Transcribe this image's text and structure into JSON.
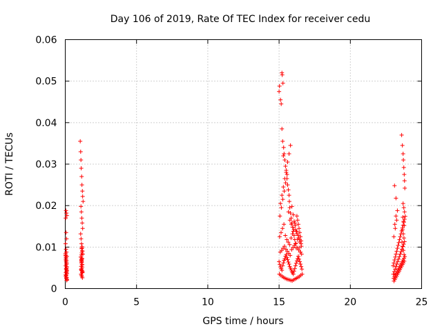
{
  "chart_data": {
    "type": "scatter",
    "title": "Day 106 of 2019, Rate Of TEC Index for receiver cedu",
    "xlabel": "GPS time / hours",
    "ylabel": "ROTI / TECUs",
    "xlim": [
      0,
      25
    ],
    "ylim": [
      0,
      0.06
    ],
    "x_ticks": [
      0,
      5,
      10,
      15,
      20,
      25
    ],
    "y_ticks": [
      0,
      0.01,
      0.02,
      0.03,
      0.04,
      0.05,
      0.06
    ],
    "x_tick_labels": [
      "0",
      "5",
      "10",
      "15",
      "20",
      "25"
    ],
    "y_tick_labels": [
      "0",
      "0.01",
      "0.02",
      "0.03",
      "0.04",
      "0.05",
      "0.06"
    ],
    "grid": true,
    "legend": "none",
    "marker": "plus",
    "color": "#ff0000",
    "series": [
      {
        "x": [
          0.02,
          0.03,
          0.05,
          0.06,
          0.08,
          0.1,
          0.12,
          0.04,
          0.07,
          0.09,
          0.11,
          0.02,
          0.05,
          0.08,
          0.1,
          0.03,
          0.06,
          0.09,
          0.12,
          0.04,
          0.07,
          0.1,
          0.05,
          0.08,
          0.11,
          0.03,
          0.06,
          0.09,
          0.02,
          0.05,
          0.08,
          0.11,
          0.04,
          0.07,
          0.1,
          0.06,
          0.09,
          0.03,
          0.08,
          0.12,
          1.05,
          1.08,
          1.1,
          1.12,
          1.15,
          1.17,
          1.2,
          1.22,
          1.25,
          1.1,
          1.13,
          1.16,
          1.19,
          1.22,
          1.08,
          1.11,
          1.14,
          1.17,
          1.2,
          1.23,
          1.1,
          1.13,
          1.16,
          1.19,
          1.12,
          1.15,
          1.18,
          1.21,
          1.11,
          1.14,
          1.17,
          1.2,
          1.13,
          1.16,
          1.19,
          1.12,
          1.15,
          1.18,
          1.14,
          1.17,
          1.1,
          1.13,
          1.16,
          1.19,
          1.15,
          1.18,
          1.12,
          1.2,
          1.14,
          1.17,
          15.0,
          15.05,
          15.1,
          15.15,
          15.2,
          15.25,
          15.3,
          15.35,
          15.4,
          15.45,
          15.5,
          15.55,
          15.6,
          15.65,
          15.7,
          15.75,
          15.8,
          15.85,
          15.9,
          15.95,
          16.0,
          16.05,
          16.1,
          16.15,
          16.2,
          16.25,
          16.3,
          16.35,
          16.4,
          16.45,
          16.5,
          16.55,
          16.6,
          15.02,
          15.12,
          15.22,
          15.32,
          15.42,
          15.52,
          15.62,
          15.72,
          15.82,
          15.92,
          16.02,
          16.12,
          16.22,
          16.32,
          16.42,
          16.52,
          16.62,
          15.08,
          15.18,
          15.28,
          15.38,
          15.48,
          15.58,
          15.68,
          15.78,
          15.88,
          15.98,
          16.08,
          16.18,
          16.28,
          16.38,
          16.48,
          16.58,
          15.04,
          15.14,
          15.24,
          15.34,
          15.44,
          15.54,
          15.64,
          15.74,
          15.84,
          15.94,
          16.04,
          16.14,
          16.24,
          16.34,
          16.44,
          16.54,
          15.06,
          15.16,
          15.26,
          15.36,
          15.46,
          15.56,
          15.66,
          15.76,
          15.86,
          15.96,
          16.06,
          16.16,
          16.26,
          16.36,
          16.46,
          16.56,
          15.1,
          15.2,
          15.3,
          15.4,
          15.5,
          15.6,
          15.7,
          15.8,
          15.9,
          16.0,
          16.1,
          16.2,
          16.3,
          16.4,
          16.5,
          15.0,
          15.03,
          15.1,
          15.15,
          15.2,
          15.25,
          15.3,
          15.2,
          15.22,
          15.27,
          15.32,
          15.35,
          15.4,
          15.45,
          15.5,
          15.55,
          15.6,
          15.65,
          15.7,
          15.72,
          15.75,
          15.8,
          15.85,
          15.9,
          15.95,
          16.0,
          16.05,
          16.1,
          16.15,
          16.2,
          16.25,
          16.3,
          16.35,
          16.4,
          16.45,
          16.5,
          16.55,
          23.0,
          23.05,
          23.1,
          23.15,
          23.2,
          23.25,
          23.3,
          23.35,
          23.4,
          23.45,
          23.5,
          23.55,
          23.6,
          23.65,
          23.7,
          23.75,
          23.8,
          23.85,
          23.02,
          23.08,
          23.14,
          23.2,
          23.26,
          23.32,
          23.38,
          23.44,
          23.5,
          23.56,
          23.62,
          23.68,
          23.74,
          23.8,
          23.04,
          23.1,
          23.16,
          23.22,
          23.28,
          23.34,
          23.4,
          23.46,
          23.52,
          23.58,
          23.64,
          23.7,
          23.76,
          23.82,
          23.06,
          23.12,
          23.18,
          23.24,
          23.3,
          23.36,
          23.42,
          23.48,
          23.54,
          23.6,
          23.66,
          23.72,
          23.78,
          23.1,
          23.2,
          23.3,
          23.6,
          23.65,
          23.7,
          23.72,
          23.75,
          23.78,
          23.8,
          23.82,
          23.7,
          23.75,
          23.8,
          23.68,
          23.73,
          23.78,
          23.66,
          23.71,
          23.76,
          23.62,
          23.67,
          23.72,
          23.77,
          23.05,
          23.15,
          23.25,
          23.12,
          23.2
        ],
        "y": [
          0.0085,
          0.0079,
          0.0072,
          0.0065,
          0.0058,
          0.005,
          0.0044,
          0.0038,
          0.0032,
          0.0027,
          0.0022,
          0.0081,
          0.0075,
          0.0068,
          0.0061,
          0.0055,
          0.0048,
          0.0042,
          0.0036,
          0.003,
          0.0025,
          0.002,
          0.0188,
          0.0182,
          0.0176,
          0.017,
          0.0135,
          0.012,
          0.0108,
          0.0095,
          0.0088,
          0.0078,
          0.0069,
          0.0062,
          0.0053,
          0.0046,
          0.0039,
          0.0033,
          0.0026,
          0.0021,
          0.0355,
          0.033,
          0.031,
          0.029,
          0.027,
          0.025,
          0.0235,
          0.0222,
          0.021,
          0.0198,
          0.0185,
          0.017,
          0.0158,
          0.0145,
          0.0132,
          0.012,
          0.0108,
          0.0098,
          0.009,
          0.0083,
          0.0076,
          0.007,
          0.0064,
          0.0058,
          0.0053,
          0.0048,
          0.0043,
          0.0039,
          0.0035,
          0.0032,
          0.0029,
          0.0026,
          0.0062,
          0.0057,
          0.0052,
          0.0047,
          0.0043,
          0.0038,
          0.0066,
          0.0071,
          0.0076,
          0.0081,
          0.0086,
          0.0091,
          0.0096,
          0.0101,
          0.0045,
          0.0041,
          0.0068,
          0.0073,
          0.0065,
          0.0058,
          0.0052,
          0.0048,
          0.0044,
          0.0055,
          0.0062,
          0.0068,
          0.0072,
          0.0078,
          0.0082,
          0.0075,
          0.007,
          0.0064,
          0.0059,
          0.0053,
          0.0049,
          0.0045,
          0.0041,
          0.0038,
          0.0035,
          0.0042,
          0.0048,
          0.0055,
          0.0061,
          0.0067,
          0.0072,
          0.0078,
          0.0071,
          0.0065,
          0.0059,
          0.0053,
          0.0047,
          0.0035,
          0.0032,
          0.0029,
          0.0027,
          0.0025,
          0.0023,
          0.0022,
          0.0021,
          0.002,
          0.0019,
          0.0021,
          0.0023,
          0.0025,
          0.0027,
          0.0029,
          0.0032,
          0.0035,
          0.0088,
          0.0092,
          0.0097,
          0.0102,
          0.0095,
          0.009,
          0.0085,
          0.008,
          0.0094,
          0.0099,
          0.0104,
          0.0109,
          0.0098,
          0.0093,
          0.0088,
          0.0083,
          0.0125,
          0.0135,
          0.0145,
          0.0155,
          0.0128,
          0.0118,
          0.0112,
          0.0106,
          0.0122,
          0.0132,
          0.0142,
          0.0152,
          0.0138,
          0.0128,
          0.0118,
          0.0108,
          0.0175,
          0.0195,
          0.0215,
          0.0235,
          0.0255,
          0.0275,
          0.0185,
          0.0165,
          0.0155,
          0.0148,
          0.0162,
          0.0142,
          0.0132,
          0.0122,
          0.0112,
          0.0102,
          0.0205,
          0.0225,
          0.0245,
          0.0265,
          0.0285,
          0.0305,
          0.0325,
          0.0345,
          0.0198,
          0.0178,
          0.0158,
          0.0138,
          0.0118,
          0.0098,
          0.0088,
          0.0475,
          0.0488,
          0.0455,
          0.0445,
          0.0385,
          0.0355,
          0.032,
          0.052,
          0.0515,
          0.0495,
          0.034,
          0.0325,
          0.031,
          0.0295,
          0.028,
          0.0265,
          0.025,
          0.0238,
          0.0225,
          0.021,
          0.0195,
          0.0182,
          0.017,
          0.0158,
          0.0148,
          0.0138,
          0.0128,
          0.0118,
          0.0108,
          0.0098,
          0.0175,
          0.0165,
          0.0155,
          0.0145,
          0.0135,
          0.0125,
          0.0115,
          0.0055,
          0.0062,
          0.0069,
          0.0076,
          0.0083,
          0.009,
          0.0097,
          0.0104,
          0.0111,
          0.0118,
          0.0125,
          0.0132,
          0.0139,
          0.0146,
          0.0153,
          0.016,
          0.0167,
          0.0174,
          0.0035,
          0.0041,
          0.0047,
          0.0053,
          0.0059,
          0.0065,
          0.0071,
          0.0077,
          0.0083,
          0.0089,
          0.0095,
          0.0101,
          0.0107,
          0.0113,
          0.0025,
          0.0029,
          0.0033,
          0.0037,
          0.0041,
          0.0045,
          0.0049,
          0.0053,
          0.0057,
          0.0061,
          0.0065,
          0.0069,
          0.0073,
          0.0077,
          0.0018,
          0.0022,
          0.0026,
          0.003,
          0.0034,
          0.0038,
          0.0042,
          0.0046,
          0.005,
          0.0054,
          0.0058,
          0.0062,
          0.0066,
          0.0248,
          0.0218,
          0.0188,
          0.037,
          0.0345,
          0.0325,
          0.031,
          0.0292,
          0.0275,
          0.026,
          0.0242,
          0.0205,
          0.0195,
          0.0185,
          0.0172,
          0.0162,
          0.0152,
          0.0142,
          0.0132,
          0.0122,
          0.0112,
          0.0102,
          0.0092,
          0.0082,
          0.0125,
          0.0145,
          0.0165,
          0.0155,
          0.0175
        ]
      }
    ]
  }
}
